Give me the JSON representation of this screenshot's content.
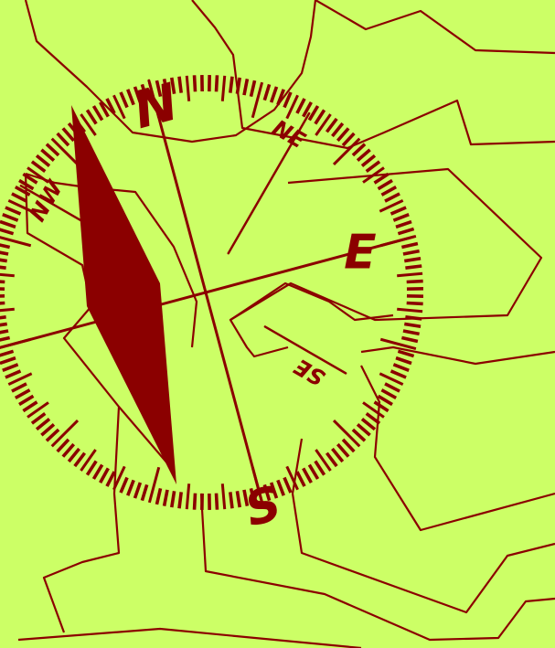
{
  "compass": {
    "north": "N",
    "east": "E",
    "south": "S",
    "northeast": "NE",
    "northwest": "NW",
    "southeast": "SE"
  },
  "colors": {
    "background": "#ccff66",
    "ink": "#8b0000"
  }
}
